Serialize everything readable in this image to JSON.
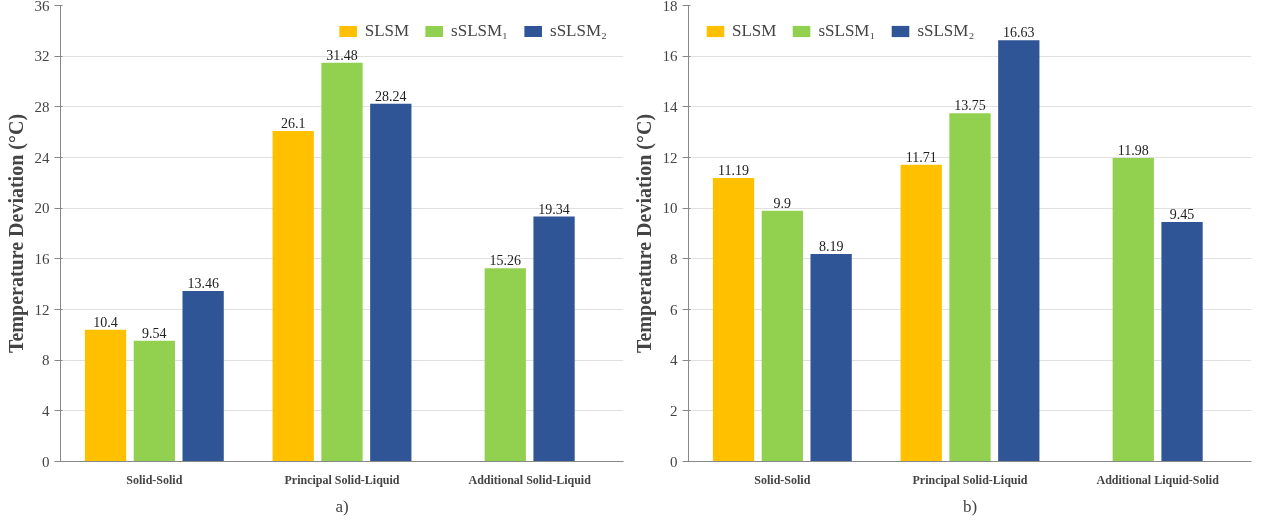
{
  "chart_data": [
    {
      "type": "bar",
      "ylabel": "Temperature Deviation (°C)",
      "categories": [
        "Solid-Solid",
        "Principal Solid-Liquid",
        "Additional Solid-Liquid"
      ],
      "series": [
        {
          "name": "SLSM",
          "color": "#ffc000",
          "values": [
            10.4,
            26.1,
            null
          ]
        },
        {
          "name": "sSLSM₁",
          "color": "#92d050",
          "values": [
            9.54,
            31.48,
            15.26
          ]
        },
        {
          "name": "sSLSM₂",
          "color": "#2f5597",
          "values": [
            13.46,
            28.24,
            19.34
          ]
        }
      ],
      "ylim": [
        0,
        36
      ],
      "yticks": [
        0,
        4,
        8,
        12,
        16,
        20,
        24,
        28,
        32,
        36
      ],
      "grid": "y",
      "legend": "top right",
      "data_labels": true,
      "annotations": [
        "a)"
      ]
    },
    {
      "type": "bar",
      "ylabel": "Temperature Deviation (°C)",
      "categories": [
        "Solid-Solid",
        "Principal Solid-Liquid",
        "Additional Liquid-Solid"
      ],
      "series": [
        {
          "name": "SLSM",
          "color": "#ffc000",
          "values": [
            11.19,
            11.71,
            null
          ]
        },
        {
          "name": "sSLSM₁",
          "color": "#92d050",
          "values": [
            9.9,
            13.75,
            11.98
          ]
        },
        {
          "name": "sSLSM₂",
          "color": "#2f5597",
          "values": [
            8.19,
            16.63,
            9.45
          ]
        }
      ],
      "ylim": [
        0,
        18
      ],
      "yticks": [
        0,
        2,
        4,
        6,
        8,
        10,
        12,
        14,
        16,
        18
      ],
      "grid": "y",
      "legend": "top left",
      "data_labels": true,
      "annotations": [
        "b)"
      ]
    }
  ]
}
